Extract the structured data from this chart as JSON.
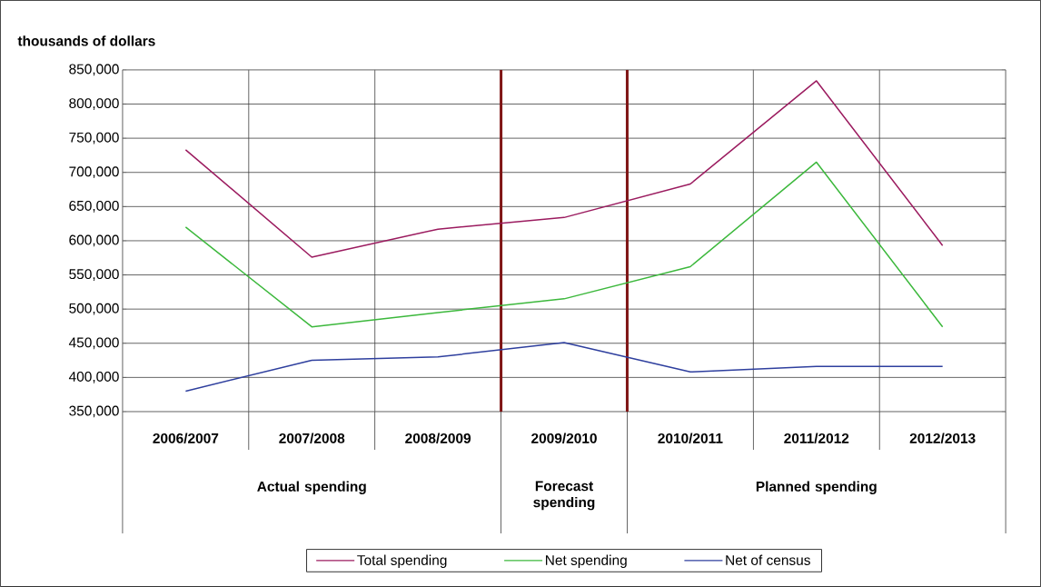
{
  "chart_data": {
    "type": "line",
    "ylabel": "thousands of dollars",
    "categories": [
      "2006/2007",
      "2007/2008",
      "2008/2009",
      "2009/2010",
      "2010/2011",
      "2011/2012",
      "2012/2013"
    ],
    "series": [
      {
        "name": "Total spending",
        "color": "#9b1b5f",
        "values": [
          733000,
          576000,
          617000,
          634000,
          683000,
          834000,
          593000
        ]
      },
      {
        "name": "Net spending",
        "color": "#3cb83c",
        "values": [
          620000,
          474000,
          495000,
          515000,
          562000,
          715000,
          474000
        ]
      },
      {
        "name": "Net of census",
        "color": "#2e3f9e",
        "values": [
          380000,
          425000,
          430000,
          451000,
          408000,
          416000,
          416000
        ]
      }
    ],
    "ylim": [
      350000,
      850000
    ],
    "yticks": [
      {
        "value": 350000,
        "label": "350,000"
      },
      {
        "value": 400000,
        "label": "400,000"
      },
      {
        "value": 450000,
        "label": "450,000"
      },
      {
        "value": 500000,
        "label": "500,000"
      },
      {
        "value": 550000,
        "label": "550,000"
      },
      {
        "value": 600000,
        "label": "600,000"
      },
      {
        "value": 650000,
        "label": "650,000"
      },
      {
        "value": 700000,
        "label": "700,000"
      },
      {
        "value": 750000,
        "label": "750,000"
      },
      {
        "value": 800000,
        "label": "800,000"
      },
      {
        "value": 850000,
        "label": "850,000"
      }
    ],
    "annotations": [
      "Actual spending",
      "Forecast spending",
      "Planned spending"
    ],
    "grid": true,
    "legend": "bottom",
    "marker": "none",
    "line_style": "solid"
  }
}
